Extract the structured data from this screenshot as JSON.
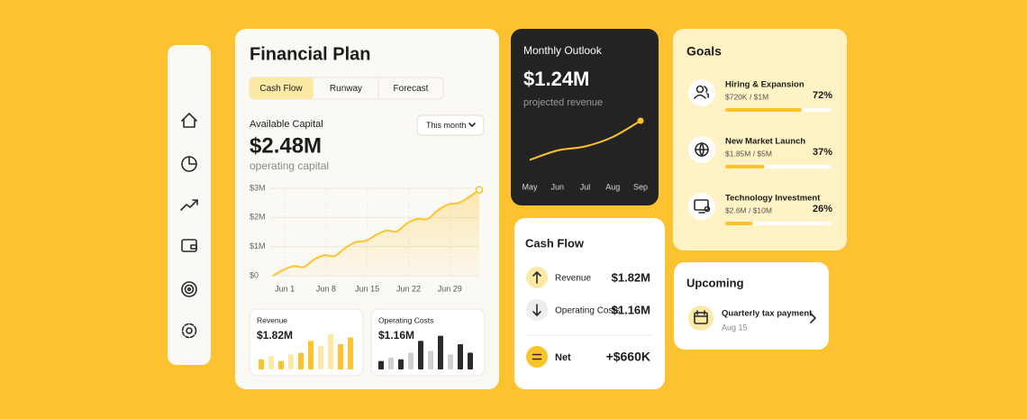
{
  "financial_plan": {
    "title": "Financial Plan",
    "tabs": [
      "Cash Flow",
      "Runway",
      "Forecast"
    ],
    "period_selector": "This month"
  },
  "chart_data": [
    {
      "type": "area",
      "title": "Available Capital",
      "headline": "$2.48M",
      "subtitle": "operating capital",
      "x": [
        -1,
        0.75,
        2.5,
        4.25,
        6,
        7.75,
        9.5,
        11.25,
        13,
        14.75,
        16.5,
        18.25,
        20,
        21.75,
        23.5,
        25.25,
        27,
        28.75,
        30.5,
        32.25,
        34
      ],
      "values": [
        0,
        200000,
        330000,
        300000,
        560000,
        700000,
        680000,
        950000,
        1150000,
        1200000,
        1400000,
        1550000,
        1520000,
        1800000,
        1950000,
        1950000,
        2250000,
        2450000,
        2500000,
        2700000,
        2950000
      ],
      "color": "#fcc42c",
      "xlim": [
        -1,
        34
      ],
      "xticks": [
        {
          "value": 1,
          "label": "Jun 1"
        },
        {
          "value": 8,
          "label": "Jun 8"
        },
        {
          "value": 15,
          "label": "Jun 15"
        },
        {
          "value": 22,
          "label": "Jun 22"
        },
        {
          "value": 29,
          "label": "Jun 29"
        }
      ],
      "ylim": [
        0,
        3000000
      ],
      "yticks": [
        {
          "value": 0,
          "label": "$0"
        },
        {
          "value": 1000000,
          "label": "$1M"
        },
        {
          "value": 2000000,
          "label": "$2M"
        },
        {
          "value": 3000000,
          "label": "$3M"
        }
      ],
      "grid": true
    },
    {
      "type": "line",
      "title": "Monthly Outlook",
      "headline": "$1.24M",
      "subtitle": "projected revenue",
      "categories": [
        "May",
        "Jun",
        "Jul",
        "Aug",
        "Sep"
      ],
      "values": [
        0.95,
        1.02,
        1.05,
        1.12,
        1.24
      ],
      "color": "#fcc42c",
      "ylim": [
        0.9,
        1.3
      ]
    },
    {
      "type": "bar",
      "title": "Revenue",
      "headline": "$1.82M",
      "values": [
        12,
        16,
        10,
        18,
        20,
        34,
        28,
        42,
        30,
        38
      ],
      "colors": [
        "#fcc42c",
        "#fde9a6",
        "#fcc42c",
        "#fde9a6",
        "#fcc42c",
        "#fcc42c",
        "#fde9a6",
        "#fde9a6",
        "#fcc42c",
        "#fcc42c"
      ],
      "ylim": [
        0,
        45
      ]
    },
    {
      "type": "bar",
      "title": "Operating Costs",
      "headline": "$1.16M",
      "values": [
        10,
        14,
        12,
        20,
        34,
        22,
        40,
        18,
        30,
        20
      ],
      "colors": [
        "#2a2a2a",
        "#cfcfcf",
        "#2a2a2a",
        "#cfcfcf",
        "#2a2a2a",
        "#cfcfcf",
        "#2a2a2a",
        "#cfcfcf",
        "#2a2a2a",
        "#2a2a2a"
      ],
      "ylim": [
        0,
        45
      ]
    }
  ],
  "cash_flow": {
    "title": "Cash Flow",
    "rows": [
      {
        "label": "Revenue",
        "value": "$1.82M"
      },
      {
        "label": "Operating Costs",
        "value": "$1.16M"
      }
    ],
    "net": {
      "label": "Net",
      "value": "+$660K"
    }
  },
  "goals": {
    "title": "Goals",
    "xlim": [
      0,
      100
    ],
    "items": [
      {
        "name": "Hiring & Expansion",
        "amount": "$720K / $1M",
        "value": 72,
        "value_label": "72%"
      },
      {
        "name": "New Market Launch",
        "amount": "$1.85M / $5M",
        "value": 37,
        "value_label": "37%"
      },
      {
        "name": "Technology Investment",
        "amount": "$2.6M / $10M",
        "value": 26,
        "value_label": "26%"
      }
    ]
  },
  "upcoming": {
    "title": "Upcoming",
    "item": "Quarterly tax payment",
    "date": "Aug 15"
  }
}
